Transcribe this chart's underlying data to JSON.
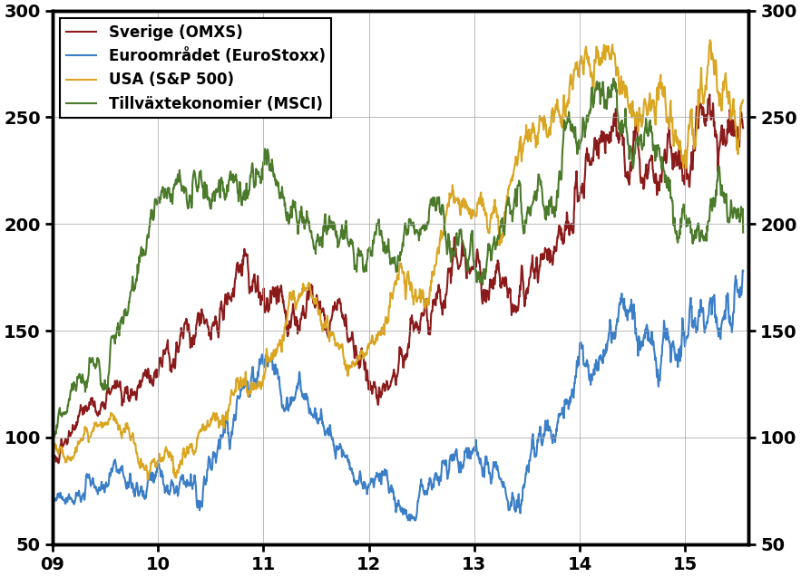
{
  "legend_entries": [
    "Sverige (OMXS)",
    "Euroområdet (EuroStoxx)",
    "USA (S&P 500)",
    "Tillväxtekonomier (MSCI)"
  ],
  "colors": [
    "#8B1A1A",
    "#3B7EC8",
    "#DAA520",
    "#4A7A2A"
  ],
  "line_width": 1.5,
  "ylim": [
    50,
    300
  ],
  "yticks": [
    50,
    100,
    150,
    200,
    250,
    300
  ],
  "xlim_start": 2009.0,
  "xlim_end": 2015.6,
  "xticks": [
    2009,
    2010,
    2011,
    2012,
    2013,
    2014,
    2015
  ],
  "xticklabels": [
    "09",
    "10",
    "11",
    "12",
    "13",
    "14",
    "15"
  ],
  "grid_color": "#aaaaaa",
  "background_color": "#ffffff",
  "n_points": 1650
}
